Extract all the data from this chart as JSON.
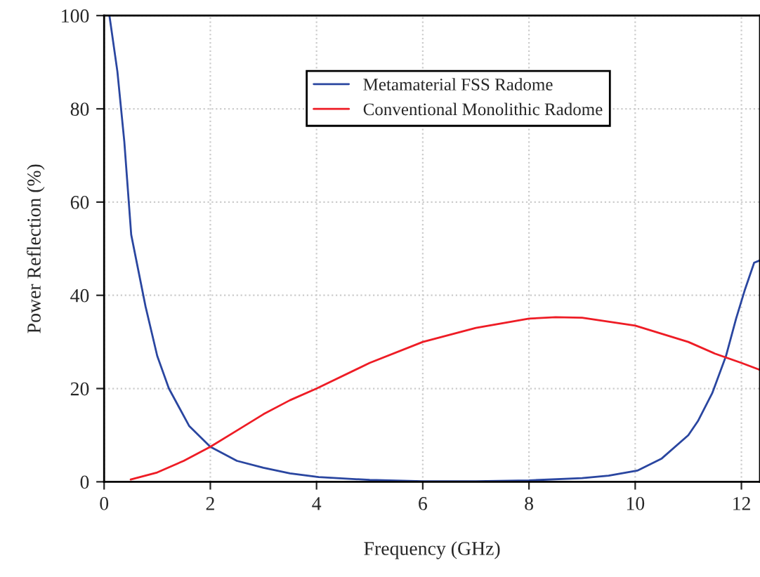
{
  "chart_data": {
    "type": "line",
    "xlabel": "Frequency (GHz)",
    "ylabel": "Power Reflection (%)",
    "xlim": [
      0,
      12.35
    ],
    "ylim": [
      0,
      100
    ],
    "xticks": [
      0,
      2,
      4,
      6,
      8,
      10,
      12
    ],
    "yticks": [
      0,
      20,
      40,
      60,
      80,
      100
    ],
    "grid": true,
    "legend": "top",
    "marker": "none",
    "line_style": "solid",
    "series": [
      {
        "name": "Metamaterial FSS Radome",
        "color": "#2a46a0",
        "x": [
          0.1,
          0.25,
          0.38,
          0.51,
          0.78,
          1.0,
          1.22,
          1.6,
          2.0,
          2.5,
          3.0,
          3.5,
          4.04,
          5,
          6,
          7,
          8,
          9,
          9.5,
          10.04,
          10.5,
          11.0,
          11.18,
          11.45,
          11.71,
          11.9,
          12.06,
          12.24,
          12.35
        ],
        "values": [
          100,
          88,
          73,
          53,
          37.6,
          27,
          20,
          12,
          7.5,
          4.5,
          3,
          1.8,
          1,
          0.4,
          0.1,
          0.1,
          0.3,
          0.8,
          1.3,
          2.4,
          5,
          10,
          13,
          19,
          27,
          35,
          41,
          47,
          47.5
        ]
      },
      {
        "name": "Conventional Monolithic Radome",
        "color": "#ee1c25",
        "x": [
          0.5,
          1,
          1.5,
          2,
          2.5,
          3,
          3.5,
          4,
          5,
          6,
          7,
          8,
          8.5,
          9,
          10,
          11,
          11.5,
          12,
          12.35
        ],
        "values": [
          0.5,
          2,
          4.5,
          7.5,
          11,
          14.5,
          17.5,
          20,
          25.5,
          30,
          33,
          35,
          35.3,
          35.2,
          33.5,
          30,
          27.5,
          25.5,
          24
        ]
      }
    ]
  }
}
